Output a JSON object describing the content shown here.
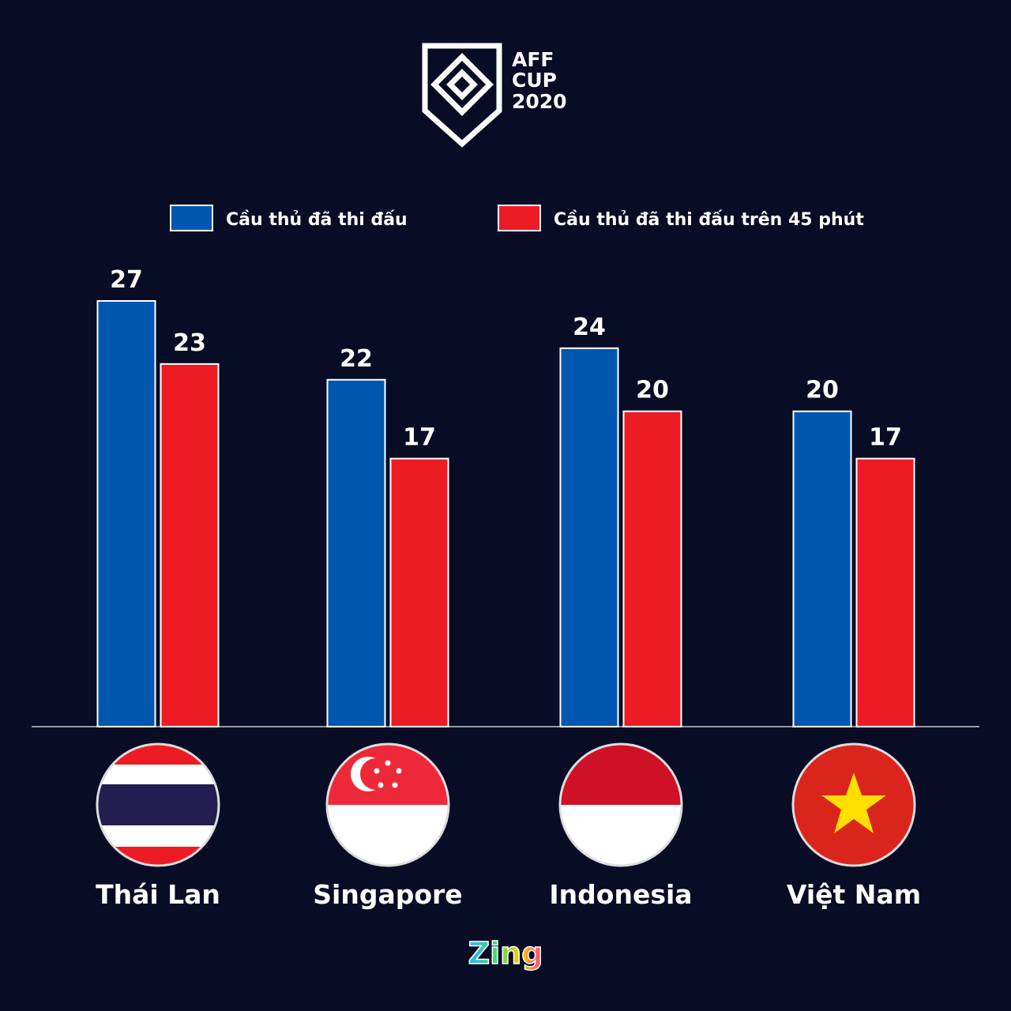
{
  "logo": {
    "lines": [
      "AFF",
      "CUP",
      "2020"
    ]
  },
  "chart_data": {
    "type": "bar",
    "categories": [
      "Thái Lan",
      "Singapore",
      "Indonesia",
      "Việt Nam"
    ],
    "series": [
      {
        "name": "Cầu thủ đã thi đấu",
        "color": "#0057b0",
        "values": [
          27,
          22,
          24,
          20
        ]
      },
      {
        "name": "Cầu thủ đã thi đấu trên 45 phút",
        "color": "#ed1c24",
        "values": [
          23,
          17,
          20,
          17
        ]
      }
    ],
    "legend": "top"
  },
  "footer": {
    "brand": "Zing"
  }
}
